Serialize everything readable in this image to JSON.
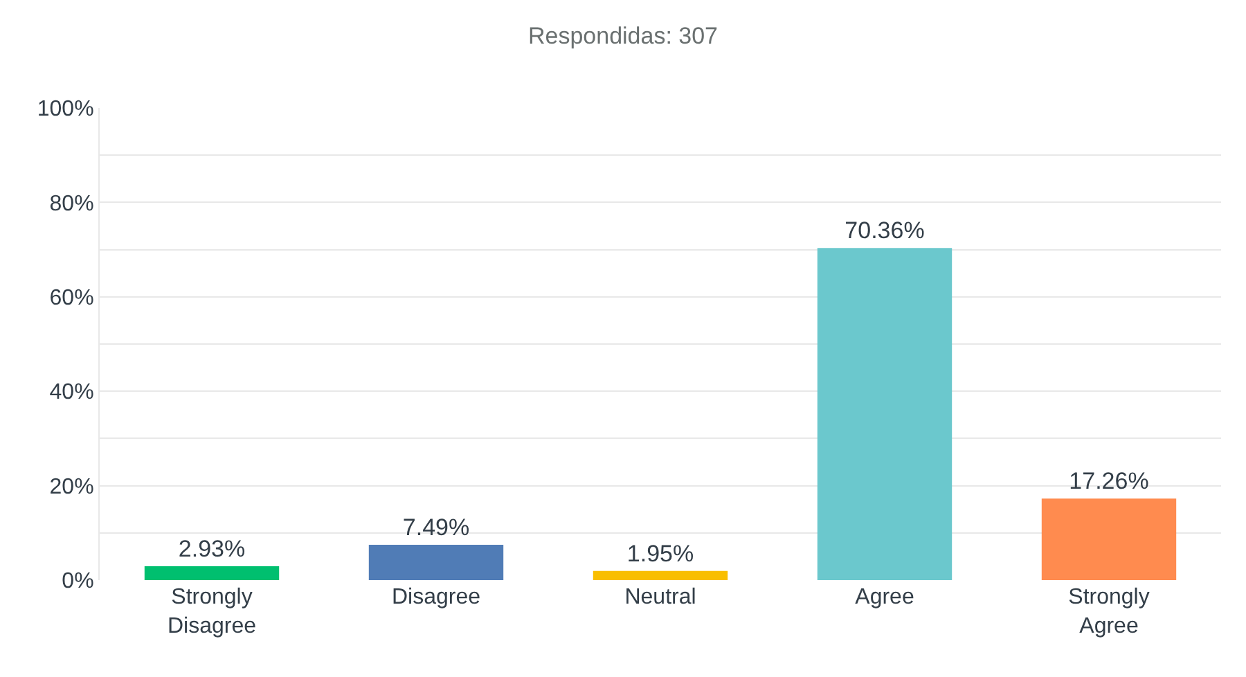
{
  "chart_data": {
    "type": "bar",
    "title": "Respondidas: 307",
    "categories": [
      "Strongly Disagree",
      "Disagree",
      "Neutral",
      "Agree",
      "Strongly Agree"
    ],
    "values": [
      2.93,
      7.49,
      1.95,
      70.36,
      17.26
    ],
    "colors": [
      "#00bf6f",
      "#507cb6",
      "#f9be00",
      "#6bc8cd",
      "#ff8b4f"
    ],
    "value_labels": [
      "2.93%",
      "7.49%",
      "1.95%",
      "70.36%",
      "17.26%"
    ],
    "ylim": [
      0,
      100
    ],
    "yticks": [
      {
        "value": 0,
        "label": "0%"
      },
      {
        "value": 10,
        "label": null
      },
      {
        "value": 20,
        "label": "20%"
      },
      {
        "value": 30,
        "label": null
      },
      {
        "value": 40,
        "label": "40%"
      },
      {
        "value": 50,
        "label": null
      },
      {
        "value": 60,
        "label": "60%"
      },
      {
        "value": 70,
        "label": null
      },
      {
        "value": 80,
        "label": "80%"
      },
      {
        "value": 90,
        "label": null
      },
      {
        "value": 100,
        "label": "100%"
      }
    ],
    "grid": "y",
    "legend": false
  }
}
